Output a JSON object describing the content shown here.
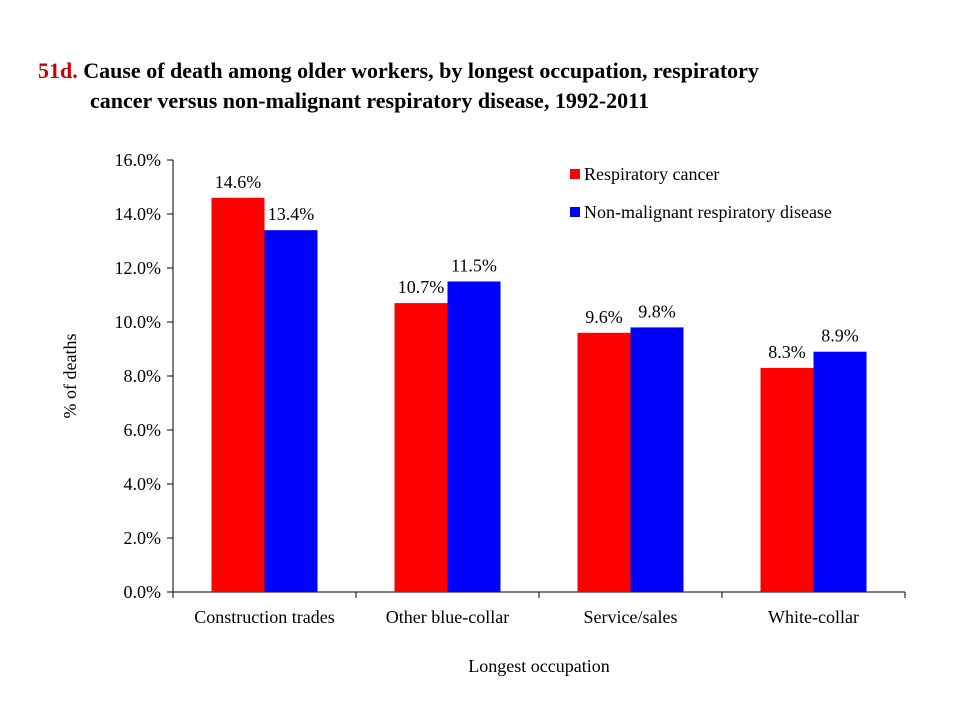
{
  "title": {
    "number": "51d.",
    "line1": "Cause of death among older workers, by longest occupation, respiratory",
    "line2": "cancer versus non-malignant respiratory disease, 1992-2011"
  },
  "chart_data": {
    "type": "bar",
    "categories": [
      "Construction trades",
      "Other blue-collar",
      "Service/sales",
      "White-collar"
    ],
    "series": [
      {
        "name": "Respiratory cancer",
        "color": "#ff0000",
        "values": [
          14.6,
          10.7,
          9.6,
          8.3
        ],
        "labels": [
          "14.6%",
          "10.7%",
          "9.6%",
          "8.3%"
        ]
      },
      {
        "name": "Non-malignant respiratory disease",
        "color": "#0000ff",
        "values": [
          13.4,
          11.5,
          9.8,
          8.9
        ],
        "labels": [
          "13.4%",
          "11.5%",
          "9.8%",
          "8.9%"
        ]
      }
    ],
    "xlabel": "Longest occupation",
    "ylabel": "% of deaths",
    "ylim": [
      0,
      16
    ],
    "yticks": [
      0,
      2,
      4,
      6,
      8,
      10,
      12,
      14,
      16
    ],
    "ytick_labels": [
      "0.0%",
      "2.0%",
      "4.0%",
      "6.0%",
      "8.0%",
      "10.0%",
      "12.0%",
      "14.0%",
      "16.0%"
    ],
    "legend_position": "top-right",
    "grid": false
  }
}
